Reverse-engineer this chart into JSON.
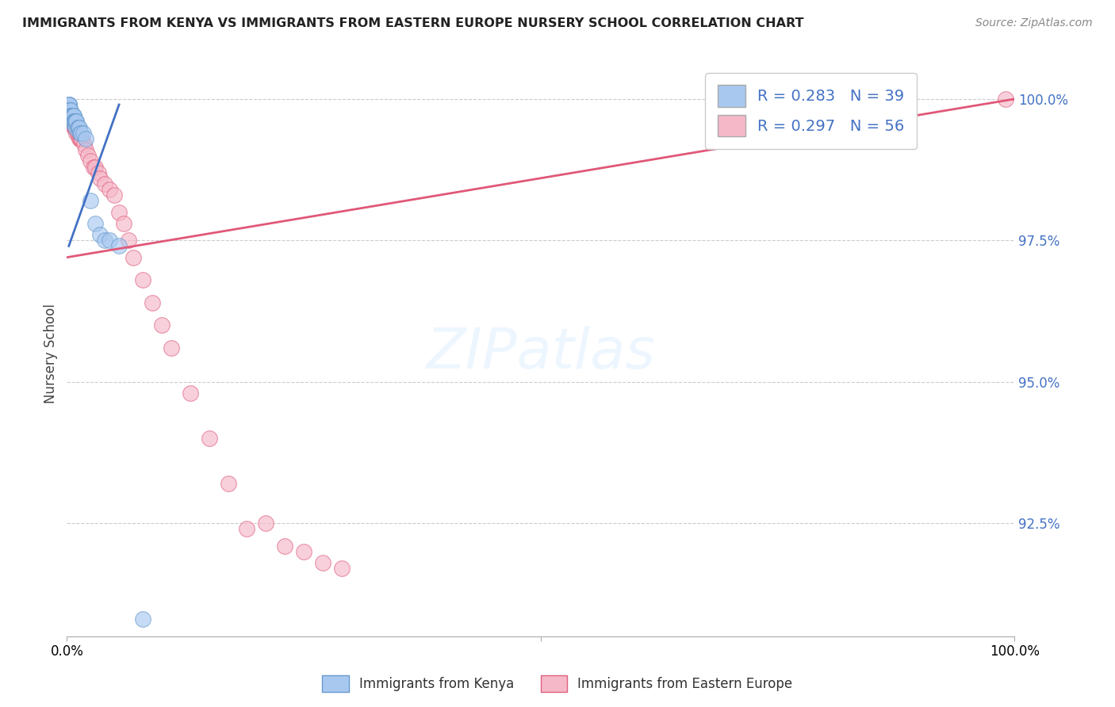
{
  "title": "IMMIGRANTS FROM KENYA VS IMMIGRANTS FROM EASTERN EUROPE NURSERY SCHOOL CORRELATION CHART",
  "source": "Source: ZipAtlas.com",
  "ylabel": "Nursery School",
  "xlim": [
    0.0,
    1.0
  ],
  "ylim": [
    0.905,
    1.005
  ],
  "yticks": [
    0.925,
    0.95,
    0.975,
    1.0
  ],
  "ytick_labels": [
    "92.5%",
    "95.0%",
    "97.5%",
    "100.0%"
  ],
  "kenya_color": "#a8c8f0",
  "kenya_edge_color": "#6699cc",
  "eastern_europe_color": "#f5b8c8",
  "eastern_europe_edge_color": "#e06080",
  "kenya_line_color": "#4472c4",
  "eastern_europe_line_color": "#e05878",
  "legend_kenya_label": "R = 0.283   N = 39",
  "legend_ee_label": "R = 0.297   N = 56",
  "bottom_legend_kenya": "Immigrants from Kenya",
  "bottom_legend_ee": "Immigrants from Eastern Europe",
  "kenya_x": [
    0.002,
    0.002,
    0.002,
    0.002,
    0.003,
    0.003,
    0.003,
    0.004,
    0.004,
    0.005,
    0.005,
    0.005,
    0.005,
    0.006,
    0.006,
    0.006,
    0.007,
    0.007,
    0.007,
    0.008,
    0.008,
    0.009,
    0.009,
    0.01,
    0.01,
    0.011,
    0.012,
    0.013,
    0.014,
    0.015,
    0.017,
    0.02,
    0.025,
    0.03,
    0.035,
    0.04,
    0.045,
    0.055,
    0.08
  ],
  "kenya_y": [
    0.999,
    0.999,
    0.999,
    0.999,
    0.998,
    0.998,
    0.998,
    0.998,
    0.997,
    0.997,
    0.997,
    0.997,
    0.996,
    0.997,
    0.997,
    0.996,
    0.997,
    0.997,
    0.996,
    0.996,
    0.996,
    0.996,
    0.995,
    0.996,
    0.996,
    0.995,
    0.995,
    0.995,
    0.994,
    0.994,
    0.994,
    0.993,
    0.982,
    0.978,
    0.976,
    0.975,
    0.975,
    0.974,
    0.908
  ],
  "ee_x": [
    0.002,
    0.003,
    0.003,
    0.004,
    0.004,
    0.004,
    0.005,
    0.005,
    0.005,
    0.006,
    0.006,
    0.006,
    0.007,
    0.007,
    0.007,
    0.008,
    0.008,
    0.009,
    0.009,
    0.01,
    0.01,
    0.011,
    0.012,
    0.013,
    0.014,
    0.015,
    0.016,
    0.018,
    0.02,
    0.022,
    0.025,
    0.028,
    0.03,
    0.033,
    0.035,
    0.04,
    0.045,
    0.05,
    0.055,
    0.06,
    0.065,
    0.07,
    0.08,
    0.09,
    0.1,
    0.11,
    0.13,
    0.15,
    0.17,
    0.19,
    0.21,
    0.23,
    0.25,
    0.27,
    0.29,
    0.99
  ],
  "ee_y": [
    0.997,
    0.997,
    0.997,
    0.996,
    0.997,
    0.996,
    0.996,
    0.997,
    0.996,
    0.996,
    0.997,
    0.996,
    0.996,
    0.996,
    0.995,
    0.996,
    0.995,
    0.995,
    0.996,
    0.995,
    0.994,
    0.994,
    0.994,
    0.993,
    0.993,
    0.993,
    0.993,
    0.992,
    0.991,
    0.99,
    0.989,
    0.988,
    0.988,
    0.987,
    0.986,
    0.985,
    0.984,
    0.983,
    0.98,
    0.978,
    0.975,
    0.972,
    0.968,
    0.964,
    0.96,
    0.956,
    0.948,
    0.94,
    0.932,
    0.924,
    0.925,
    0.921,
    0.92,
    0.918,
    0.917,
    1.0
  ],
  "ee_line_x": [
    0.0,
    1.0
  ],
  "ee_line_y": [
    0.972,
    1.0
  ],
  "kenya_line_x": [
    0.002,
    0.055
  ],
  "kenya_line_y": [
    0.974,
    0.999
  ]
}
